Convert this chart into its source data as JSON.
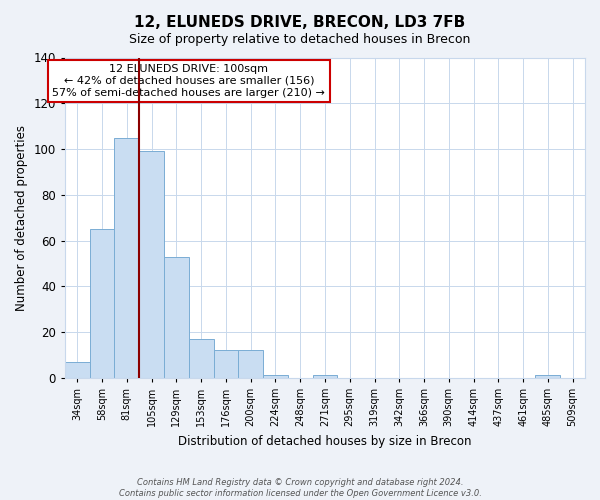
{
  "title": "12, ELUNEDS DRIVE, BRECON, LD3 7FB",
  "subtitle": "Size of property relative to detached houses in Brecon",
  "xlabel": "Distribution of detached houses by size in Brecon",
  "ylabel": "Number of detached properties",
  "bar_labels": [
    "34sqm",
    "58sqm",
    "81sqm",
    "105sqm",
    "129sqm",
    "153sqm",
    "176sqm",
    "200sqm",
    "224sqm",
    "248sqm",
    "271sqm",
    "295sqm",
    "319sqm",
    "342sqm",
    "366sqm",
    "390sqm",
    "414sqm",
    "437sqm",
    "461sqm",
    "485sqm",
    "509sqm"
  ],
  "bar_values": [
    7,
    65,
    105,
    99,
    53,
    17,
    12,
    12,
    1,
    0,
    1,
    0,
    0,
    0,
    0,
    0,
    0,
    0,
    0,
    1,
    0
  ],
  "bar_color": "#c9ddf2",
  "bar_edge_color": "#7aadd4",
  "vline_x_index": 2,
  "vline_color": "#8b0000",
  "ylim": [
    0,
    140
  ],
  "yticks": [
    0,
    20,
    40,
    60,
    80,
    100,
    120,
    140
  ],
  "annotation_text": "12 ELUNEDS DRIVE: 100sqm\n← 42% of detached houses are smaller (156)\n57% of semi-detached houses are larger (210) →",
  "annotation_box_color": "white",
  "annotation_box_edge": "#cc0000",
  "footer_line1": "Contains HM Land Registry data © Crown copyright and database right 2024.",
  "footer_line2": "Contains public sector information licensed under the Open Government Licence v3.0.",
  "background_color": "#eef2f8",
  "plot_bg_color": "white",
  "grid_color": "#c8d8ec"
}
